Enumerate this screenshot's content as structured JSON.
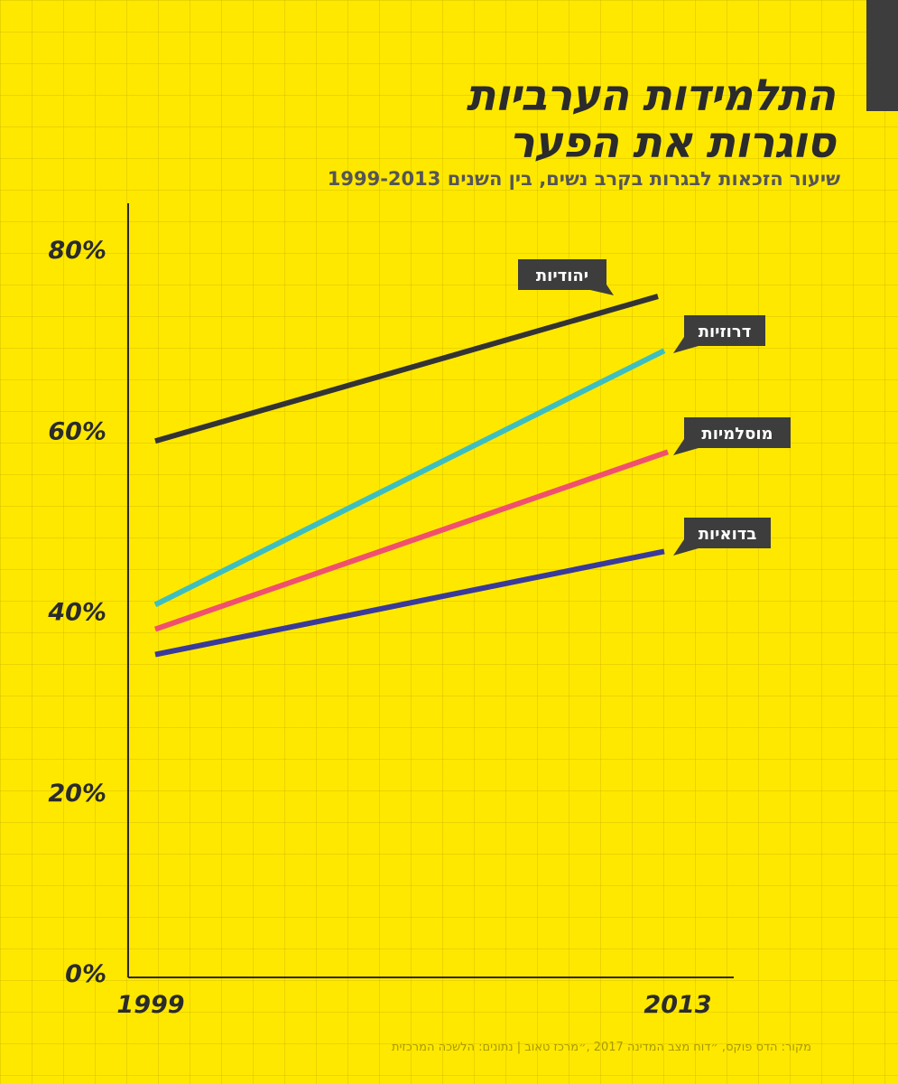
{
  "header": {
    "title_line1": "התלמידות הערביות",
    "title_line2": "סוגרות את הפער",
    "subtitle": "שיעור הזכאות לבגרות בקרב נשים, בין השנים 1999-2013"
  },
  "footer": {
    "source": "מקור: הדס פוקס, ״דוח מצב המדינה 2017 ,״מרכז טאוב | נתונים: הלשכה המרכזית"
  },
  "colors": {
    "background": "#ffe800",
    "axis": "#2b2b2b",
    "label_bg": "#3d3d3d"
  },
  "chart_data": {
    "type": "line",
    "title": "התלמידות הערביות סוגרות את הפער",
    "subtitle": "שיעור הזכאות לבגרות בקרב נשים, בין השנים 1999-2013",
    "x": [
      1999,
      2013
    ],
    "x_tick_labels": [
      "1999",
      "2013"
    ],
    "y_ticks": [
      0,
      20,
      40,
      60,
      80
    ],
    "y_tick_labels": [
      "0%",
      "20%",
      "40%",
      "60%",
      "80%"
    ],
    "ylim": [
      0,
      84
    ],
    "grid": true,
    "legend": "inline labels at line ends",
    "series": [
      {
        "name": "יהודיות",
        "values": [
          58.8,
          74.8
        ],
        "color": "#333333"
      },
      {
        "name": "דרוזיות",
        "values": [
          40.7,
          68.8
        ],
        "color": "#3dbfbf"
      },
      {
        "name": "מוסלמיות",
        "values": [
          38.0,
          57.6
        ],
        "color": "#f0506e"
      },
      {
        "name": "בדואיות",
        "values": [
          35.2,
          46.6
        ],
        "color": "#3a3a9a"
      }
    ]
  }
}
